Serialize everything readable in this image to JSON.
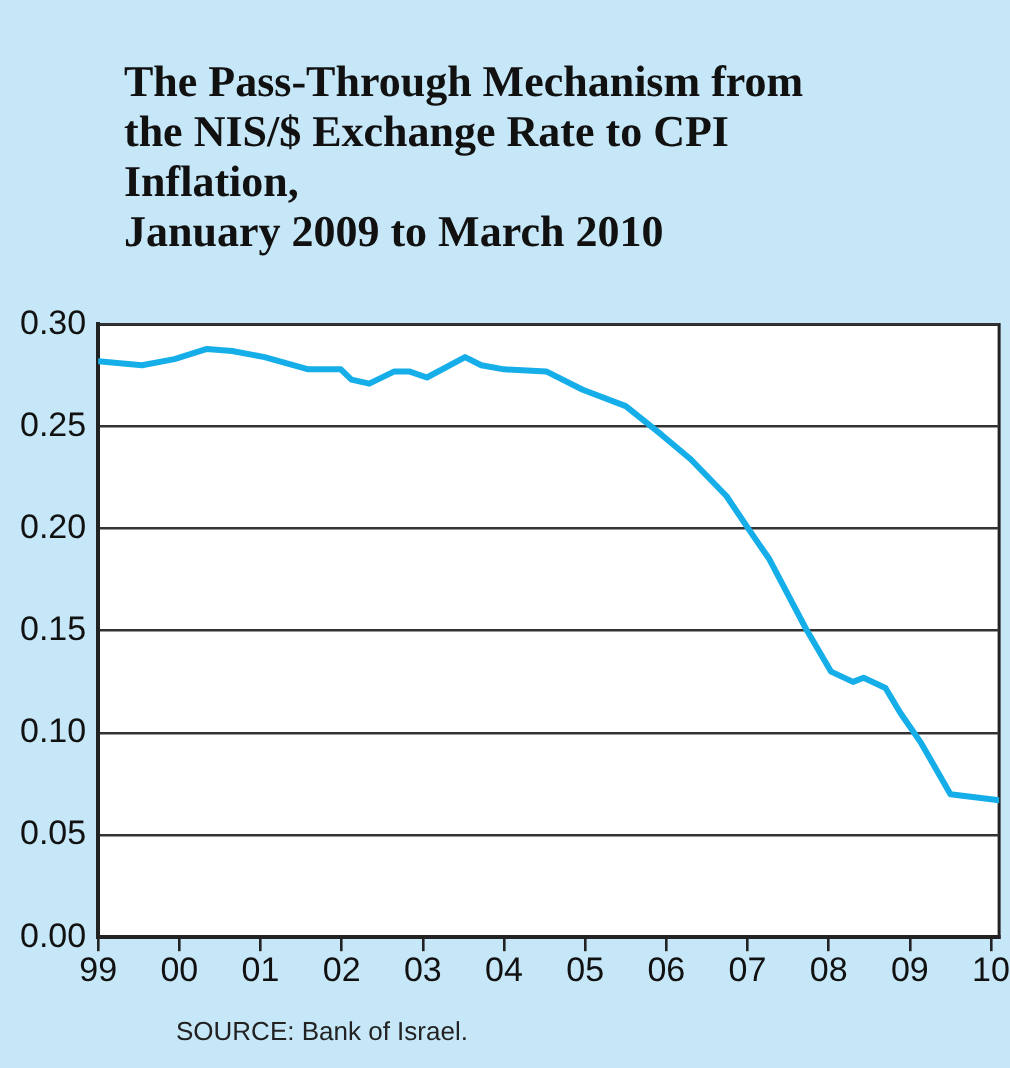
{
  "chart_data": {
    "type": "line",
    "title": "The Pass-Through Mechanism from\nthe NIS/$ Exchange Rate to CPI\nInflation,\nJanuary 2009 to March 2010",
    "series": [
      {
        "color": "#16aee8",
        "x": [
          1999.0,
          1999.54,
          1999.94,
          2000.34,
          2000.65,
          2001.05,
          2001.59,
          2001.99,
          2002.12,
          2002.34,
          2002.65,
          2002.83,
          2003.05,
          2003.52,
          2003.72,
          2004.0,
          2004.52,
          2004.97,
          2005.5,
          2005.94,
          2006.3,
          2006.74,
          2007.01,
          2007.27,
          2007.72,
          2008.03,
          2008.3,
          2008.43,
          2008.7,
          2008.88,
          2009.14,
          2009.5,
          2010.1
        ],
        "values": [
          0.282,
          0.28,
          0.283,
          0.288,
          0.287,
          0.284,
          0.278,
          0.278,
          0.273,
          0.271,
          0.277,
          0.277,
          0.274,
          0.284,
          0.28,
          0.278,
          0.277,
          0.268,
          0.26,
          0.246,
          0.234,
          0.216,
          0.2,
          0.185,
          0.151,
          0.13,
          0.125,
          0.127,
          0.122,
          0.11,
          0.095,
          0.07,
          0.067
        ]
      }
    ],
    "xlim": [
      1999,
      2010.1
    ],
    "xticks": [
      {
        "value": 1999,
        "label": "99"
      },
      {
        "value": 2000,
        "label": "00"
      },
      {
        "value": 2001,
        "label": "01"
      },
      {
        "value": 2002,
        "label": "02"
      },
      {
        "value": 2003,
        "label": "03"
      },
      {
        "value": 2004,
        "label": "04"
      },
      {
        "value": 2005,
        "label": "05"
      },
      {
        "value": 2006,
        "label": "06"
      },
      {
        "value": 2007,
        "label": "07"
      },
      {
        "value": 2008,
        "label": "08"
      },
      {
        "value": 2009,
        "label": "09"
      },
      {
        "value": 2010,
        "label": "10"
      }
    ],
    "ylim": [
      0,
      0.3
    ],
    "yticks": [
      {
        "value": 0,
        "label": "0.00"
      },
      {
        "value": 0.05,
        "label": "0.05"
      },
      {
        "value": 0.1,
        "label": "0.10"
      },
      {
        "value": 0.15,
        "label": "0.15"
      },
      {
        "value": 0.2,
        "label": "0.20"
      },
      {
        "value": 0.25,
        "label": "0.25"
      },
      {
        "value": 0.3,
        "label": "0.30"
      }
    ],
    "grid": "y",
    "legend": false,
    "marker": "none",
    "line_style": "solid",
    "annotations": [
      "SOURCE: Bank of Israel."
    ]
  }
}
